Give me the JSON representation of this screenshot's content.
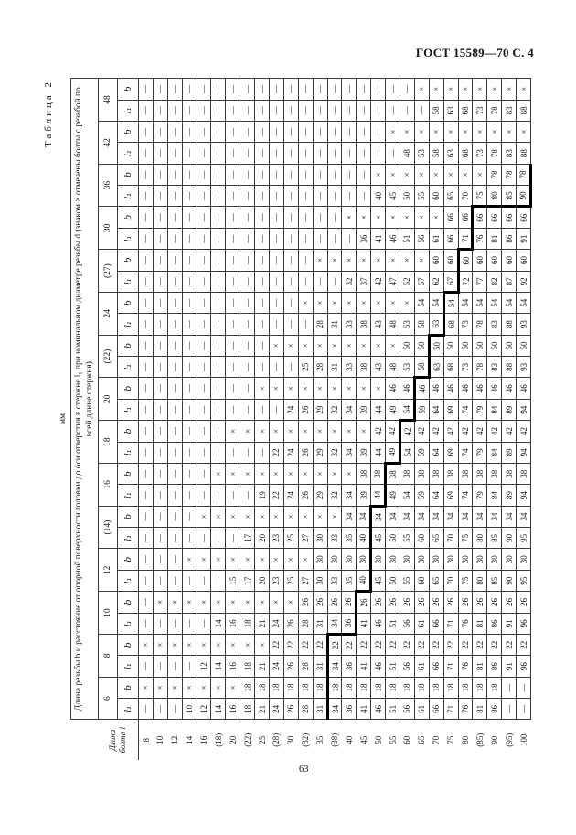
{
  "page": {
    "header": "ГОСТ 15589—70 С. 4",
    "page_number": "63"
  },
  "table": {
    "caption": "Таблица 2",
    "units": "мм",
    "stub_header": "Длина болта l",
    "title": "Длина резьбы b и расстояние от опорной поверхности головки до оси отверстия в стержне l₁ при номинальном диаметре резьбы d (знаком × отмечены болты с резьбой по всей длине стержня)",
    "sub_labels": {
      "l1": "l₁",
      "b": "b"
    },
    "lengths": [
      "8",
      "10",
      "12",
      "14",
      "16",
      "(18)",
      "20",
      "(22)",
      "25",
      "(28)",
      "30",
      "(32)",
      "35",
      "(38)",
      "40",
      "45",
      "50",
      "55",
      "60",
      "65",
      "70",
      "75",
      "80",
      "(85)",
      "90",
      "(95)",
      "100"
    ],
    "groups": [
      {
        "d": "6",
        "l1": [
          "—",
          "—",
          "—",
          "10",
          "12",
          "14",
          "16",
          "18",
          "21",
          "24",
          "26",
          "28",
          "31",
          "34",
          "36",
          "41",
          "46",
          "51",
          "56",
          "61",
          "66",
          "71",
          "76",
          "81",
          "86",
          "—",
          "—"
        ],
        "b": [
          "×",
          "×",
          "×",
          "×",
          "×",
          "×",
          "×",
          "18",
          "18",
          "18",
          "18",
          "18",
          "18",
          "18",
          "18",
          "18",
          "18",
          "18",
          "18",
          "18",
          "18",
          "18",
          "18",
          "18",
          "18",
          "—",
          "—"
        ]
      },
      {
        "d": "8",
        "l1": [
          "—",
          "—",
          "—",
          "—",
          "12",
          "14",
          "16",
          "18",
          "21",
          "24",
          "26",
          "28",
          "31",
          "34",
          "36",
          "41",
          "46",
          "51",
          "56",
          "61",
          "66",
          "71",
          "76",
          "81",
          "86",
          "91",
          "96"
        ],
        "b": [
          "×",
          "×",
          "×",
          "×",
          "×",
          "×",
          "×",
          "×",
          "×",
          "22",
          "22",
          "22",
          "22",
          "22",
          "22",
          "22",
          "22",
          "22",
          "22",
          "22",
          "22",
          "22",
          "22",
          "22",
          "22",
          "22",
          "22"
        ]
      },
      {
        "d": "10",
        "l1": [
          "—",
          "—",
          "—",
          "—",
          "—",
          "14",
          "16",
          "18",
          "21",
          "24",
          "26",
          "28",
          "31",
          "34",
          "36",
          "41",
          "46",
          "51",
          "56",
          "61",
          "66",
          "71",
          "76",
          "81",
          "86",
          "91",
          "96"
        ],
        "b": [
          "—",
          "×",
          "×",
          "×",
          "×",
          "×",
          "×",
          "×",
          "×",
          "×",
          "×",
          "26",
          "26",
          "26",
          "26",
          "26",
          "26",
          "26",
          "26",
          "26",
          "26",
          "26",
          "26",
          "26",
          "26",
          "26",
          "26"
        ]
      },
      {
        "d": "12",
        "l1": [
          "—",
          "—",
          "—",
          "—",
          "—",
          "—",
          "15",
          "17",
          "20",
          "23",
          "25",
          "27",
          "30",
          "33",
          "35",
          "40",
          "45",
          "50",
          "55",
          "60",
          "65",
          "70",
          "75",
          "80",
          "85",
          "90",
          "95"
        ],
        "b": [
          "—",
          "—",
          "—",
          "×",
          "×",
          "×",
          "×",
          "×",
          "×",
          "×",
          "×",
          "×",
          "30",
          "30",
          "30",
          "30",
          "30",
          "30",
          "30",
          "30",
          "30",
          "30",
          "30",
          "30",
          "30",
          "30",
          "30"
        ]
      },
      {
        "d": "(14)",
        "l1": [
          "—",
          "—",
          "—",
          "—",
          "—",
          "—",
          "—",
          "17",
          "20",
          "23",
          "25",
          "27",
          "30",
          "33",
          "35",
          "40",
          "45",
          "50",
          "55",
          "60",
          "65",
          "70",
          "75",
          "80",
          "85",
          "90",
          "95"
        ],
        "b": [
          "—",
          "—",
          "—",
          "—",
          "×",
          "×",
          "×",
          "×",
          "×",
          "×",
          "×",
          "×",
          "×",
          "×",
          "34",
          "34",
          "34",
          "34",
          "34",
          "34",
          "34",
          "34",
          "34",
          "34",
          "34",
          "34",
          "34"
        ]
      },
      {
        "d": "16",
        "l1": [
          "—",
          "—",
          "—",
          "—",
          "—",
          "—",
          "—",
          "—",
          "19",
          "22",
          "24",
          "26",
          "29",
          "32",
          "34",
          "39",
          "44",
          "49",
          "54",
          "59",
          "64",
          "69",
          "74",
          "79",
          "84",
          "89",
          "94"
        ],
        "b": [
          "—",
          "—",
          "—",
          "—",
          "—",
          "×",
          "×",
          "×",
          "×",
          "×",
          "×",
          "×",
          "×",
          "×",
          "×",
          "38",
          "38",
          "38",
          "38",
          "38",
          "38",
          "38",
          "38",
          "38",
          "38",
          "38",
          "38"
        ]
      },
      {
        "d": "18",
        "l1": [
          "—",
          "—",
          "—",
          "—",
          "—",
          "—",
          "—",
          "—",
          "—",
          "22",
          "24",
          "26",
          "29",
          "32",
          "34",
          "39",
          "44",
          "49",
          "54",
          "59",
          "64",
          "69",
          "74",
          "79",
          "84",
          "89",
          "94"
        ],
        "b": [
          "—",
          "—",
          "—",
          "—",
          "—",
          "—",
          "×",
          "×",
          "×",
          "×",
          "×",
          "×",
          "×",
          "×",
          "×",
          "×",
          "42",
          "42",
          "42",
          "42",
          "42",
          "42",
          "42",
          "42",
          "42",
          "42",
          "42"
        ]
      },
      {
        "d": "20",
        "l1": [
          "—",
          "—",
          "—",
          "—",
          "—",
          "—",
          "—",
          "—",
          "—",
          "—",
          "24",
          "26",
          "29",
          "32",
          "34",
          "39",
          "44",
          "49",
          "54",
          "59",
          "64",
          "69",
          "74",
          "79",
          "84",
          "89",
          "94"
        ],
        "b": [
          "—",
          "—",
          "—",
          "—",
          "—",
          "—",
          "—",
          "—",
          "×",
          "×",
          "×",
          "×",
          "×",
          "×",
          "×",
          "×",
          "×",
          "46",
          "46",
          "46",
          "46",
          "46",
          "46",
          "46",
          "46",
          "46",
          "46"
        ]
      },
      {
        "d": "(22)",
        "l1": [
          "—",
          "—",
          "—",
          "—",
          "—",
          "—",
          "—",
          "—",
          "—",
          "—",
          "—",
          "25",
          "28",
          "31",
          "33",
          "38",
          "43",
          "48",
          "53",
          "58",
          "63",
          "68",
          "73",
          "78",
          "83",
          "88",
          "93"
        ],
        "b": [
          "—",
          "—",
          "—",
          "—",
          "—",
          "—",
          "—",
          "—",
          "—",
          "×",
          "×",
          "×",
          "×",
          "×",
          "×",
          "×",
          "×",
          "×",
          "50",
          "50",
          "50",
          "50",
          "50",
          "50",
          "50",
          "50",
          "50"
        ]
      },
      {
        "d": "24",
        "l1": [
          "—",
          "—",
          "—",
          "—",
          "—",
          "—",
          "—",
          "—",
          "—",
          "—",
          "—",
          "—",
          "28",
          "31",
          "33",
          "38",
          "43",
          "48",
          "53",
          "58",
          "63",
          "68",
          "73",
          "78",
          "83",
          "88",
          "93"
        ],
        "b": [
          "—",
          "—",
          "—",
          "—",
          "—",
          "—",
          "—",
          "—",
          "—",
          "—",
          "—",
          "×",
          "×",
          "×",
          "×",
          "×",
          "×",
          "×",
          "×",
          "54",
          "54",
          "54",
          "54",
          "54",
          "54",
          "54",
          "54"
        ]
      },
      {
        "d": "(27)",
        "l1": [
          "—",
          "—",
          "—",
          "—",
          "—",
          "—",
          "—",
          "—",
          "—",
          "—",
          "—",
          "—",
          "—",
          "—",
          "32",
          "37",
          "42",
          "47",
          "52",
          "57",
          "62",
          "67",
          "72",
          "77",
          "82",
          "87",
          "92"
        ],
        "b": [
          "—",
          "—",
          "—",
          "—",
          "—",
          "—",
          "—",
          "—",
          "—",
          "—",
          "—",
          "—",
          "×",
          "×",
          "×",
          "×",
          "×",
          "×",
          "×",
          "×",
          "60",
          "60",
          "60",
          "60",
          "60",
          "60",
          "60"
        ]
      },
      {
        "d": "30",
        "l1": [
          "—",
          "—",
          "—",
          "—",
          "—",
          "—",
          "—",
          "—",
          "—",
          "—",
          "—",
          "—",
          "—",
          "—",
          "—",
          "36",
          "41",
          "46",
          "51",
          "56",
          "61",
          "66",
          "71",
          "76",
          "81",
          "86",
          "91"
        ],
        "b": [
          "—",
          "—",
          "—",
          "—",
          "—",
          "—",
          "—",
          "—",
          "—",
          "—",
          "—",
          "—",
          "—",
          "—",
          "×",
          "×",
          "×",
          "×",
          "×",
          "×",
          "×",
          "66",
          "66",
          "66",
          "66",
          "66",
          "66"
        ]
      },
      {
        "d": "36",
        "l1": [
          "—",
          "—",
          "—",
          "—",
          "—",
          "—",
          "—",
          "—",
          "—",
          "—",
          "—",
          "—",
          "—",
          "—",
          "—",
          "—",
          "40",
          "45",
          "50",
          "55",
          "60",
          "65",
          "70",
          "75",
          "80",
          "85",
          "90"
        ],
        "b": [
          "—",
          "—",
          "—",
          "—",
          "—",
          "—",
          "—",
          "—",
          "—",
          "—",
          "—",
          "—",
          "—",
          "—",
          "—",
          "—",
          "×",
          "×",
          "×",
          "×",
          "×",
          "×",
          "×",
          "×",
          "78",
          "78",
          "78"
        ]
      },
      {
        "d": "42",
        "l1": [
          "—",
          "—",
          "—",
          "—",
          "—",
          "—",
          "—",
          "—",
          "—",
          "—",
          "—",
          "—",
          "—",
          "—",
          "—",
          "—",
          "—",
          "—",
          "48",
          "53",
          "58",
          "63",
          "68",
          "73",
          "78",
          "83",
          "88"
        ],
        "b": [
          "—",
          "—",
          "—",
          "—",
          "—",
          "—",
          "—",
          "—",
          "—",
          "—",
          "—",
          "—",
          "—",
          "—",
          "—",
          "—",
          "—",
          "×",
          "×",
          "×",
          "×",
          "×",
          "×",
          "×",
          "×",
          "×",
          "×"
        ]
      },
      {
        "d": "48",
        "l1": [
          "—",
          "—",
          "—",
          "—",
          "—",
          "—",
          "—",
          "—",
          "—",
          "—",
          "—",
          "—",
          "—",
          "—",
          "—",
          "—",
          "—",
          "—",
          "—",
          "—",
          "58",
          "63",
          "68",
          "73",
          "78",
          "83",
          "88"
        ],
        "b": [
          "—",
          "—",
          "—",
          "—",
          "—",
          "—",
          "—",
          "—",
          "—",
          "—",
          "—",
          "—",
          "—",
          "—",
          "—",
          "—",
          "—",
          "—",
          "—",
          "×",
          "×",
          "×",
          "×",
          "×",
          "×",
          "×",
          "×"
        ]
      }
    ],
    "staircase": {
      "bold_top_rows": {
        "13": [
          0,
          1
        ],
        "15": [
          2
        ],
        "16": [
          3,
          4
        ],
        "17": [
          5
        ],
        "18": [
          6
        ],
        "19": [
          7
        ],
        "20": [
          8
        ],
        "21": [
          9
        ],
        "22": [
          10
        ],
        "23": [
          11
        ]
      },
      "bold_left": {
        "2": [
          13,
          14
        ],
        "3": [
          15
        ],
        "5": [
          16
        ],
        "6": [
          17
        ],
        "7": [
          18
        ],
        "8": [
          19
        ],
        "9": [
          20
        ],
        "10": [
          21
        ],
        "11": [
          22
        ],
        "12": [
          23,
          24,
          25,
          26
        ]
      },
      "bold_bottom_groups": [
        12
      ]
    }
  }
}
